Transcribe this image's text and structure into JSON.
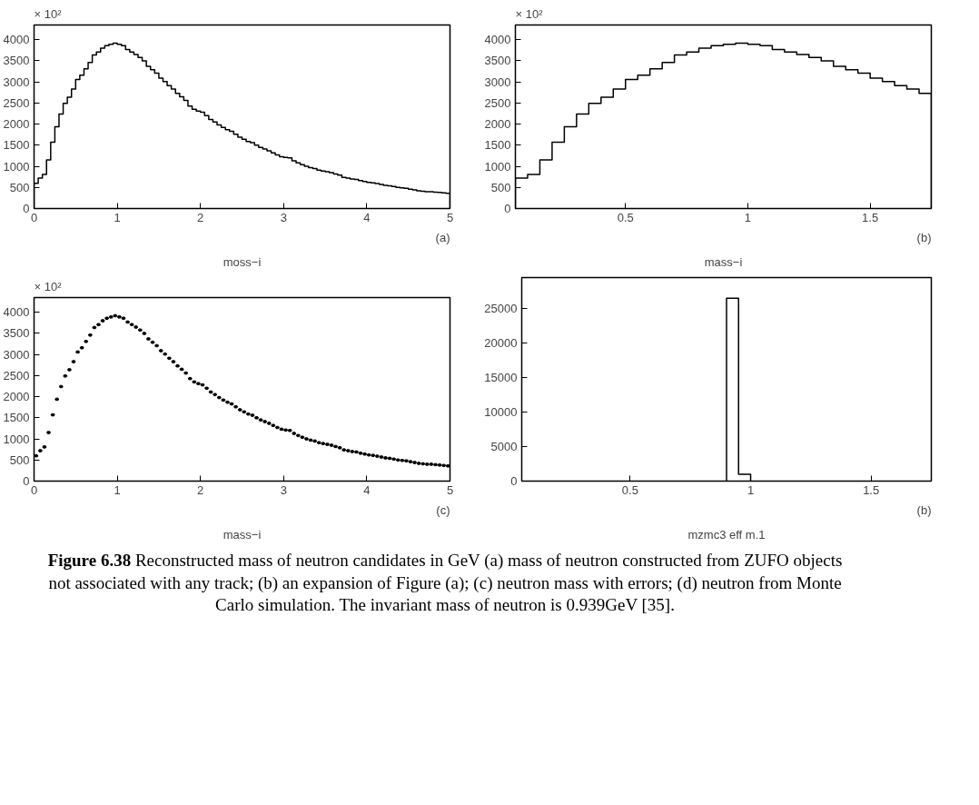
{
  "chart_data": [
    {
      "type": "histogram",
      "xlabel": "moss−i",
      "annotations": [
        "× 10²",
        "(a)"
      ],
      "xlim": [
        0,
        5
      ],
      "ylim": [
        0,
        4350
      ],
      "xticks": [
        0,
        1,
        2,
        3,
        4,
        5
      ],
      "yticks": [
        0,
        500,
        1000,
        1500,
        2000,
        2500,
        3000,
        3500,
        4000
      ],
      "color": "#000000",
      "bins": [
        0,
        0.05,
        0.1,
        0.15,
        0.2,
        0.25,
        0.3,
        0.35,
        0.4,
        0.45,
        0.5,
        0.55,
        0.6,
        0.65,
        0.7,
        0.75,
        0.8,
        0.85,
        0.9,
        0.95,
        1,
        1.05,
        1.1,
        1.15,
        1.2,
        1.25,
        1.3,
        1.35,
        1.4,
        1.45,
        1.5,
        1.55,
        1.6,
        1.65,
        1.7,
        1.75,
        1.8,
        1.85,
        1.9,
        1.95,
        2,
        2.05,
        2.1,
        2.15,
        2.2,
        2.25,
        2.3,
        2.35,
        2.4,
        2.45,
        2.5,
        2.55,
        2.6,
        2.65,
        2.7,
        2.75,
        2.8,
        2.85,
        2.9,
        2.95,
        3,
        3.05,
        3.1,
        3.15,
        3.2,
        3.25,
        3.3,
        3.35,
        3.4,
        3.45,
        3.5,
        3.55,
        3.6,
        3.65,
        3.7,
        3.75,
        3.8,
        3.85,
        3.9,
        3.95,
        4,
        4.05,
        4.1,
        4.15,
        4.2,
        4.25,
        4.3,
        4.35,
        4.4,
        4.45,
        4.5,
        4.55,
        4.6,
        4.65,
        4.7,
        4.75,
        4.8,
        4.85,
        4.9,
        4.95,
        5
      ],
      "values": [
        600,
        720,
        810,
        1150,
        1570,
        1940,
        2240,
        2490,
        2640,
        2830,
        3060,
        3160,
        3310,
        3460,
        3640,
        3710,
        3800,
        3860,
        3890,
        3920,
        3890,
        3860,
        3770,
        3710,
        3650,
        3580,
        3500,
        3370,
        3290,
        3210,
        3090,
        3010,
        2910,
        2830,
        2730,
        2650,
        2560,
        2430,
        2350,
        2310,
        2280,
        2200,
        2110,
        2050,
        1980,
        1920,
        1870,
        1830,
        1760,
        1690,
        1640,
        1590,
        1560,
        1500,
        1450,
        1410,
        1370,
        1320,
        1270,
        1230,
        1210,
        1200,
        1130,
        1080,
        1040,
        1000,
        970,
        950,
        910,
        890,
        870,
        850,
        820,
        790,
        740,
        720,
        700,
        690,
        660,
        640,
        620,
        610,
        590,
        570,
        550,
        540,
        520,
        500,
        490,
        480,
        460,
        440,
        420,
        410,
        400,
        400,
        390,
        380,
        370,
        360
      ]
    },
    {
      "type": "histogram",
      "xlabel": "mass−i",
      "annotations": [
        "× 10²",
        "(b)"
      ],
      "xlim": [
        0.05,
        1.75
      ],
      "ylim": [
        0,
        4350
      ],
      "xticks": [
        0.5,
        1,
        1.5
      ],
      "yticks": [
        0,
        500,
        1000,
        1500,
        2000,
        2500,
        3000,
        3500,
        4000
      ],
      "color": "#000000",
      "bins": [
        0.05,
        0.1,
        0.15,
        0.2,
        0.25,
        0.3,
        0.35,
        0.4,
        0.45,
        0.5,
        0.55,
        0.6,
        0.65,
        0.7,
        0.75,
        0.8,
        0.85,
        0.9,
        0.95,
        1,
        1.05,
        1.1,
        1.15,
        1.2,
        1.25,
        1.3,
        1.35,
        1.4,
        1.45,
        1.5,
        1.55,
        1.6,
        1.65,
        1.7,
        1.75
      ],
      "values": [
        720,
        810,
        1150,
        1570,
        1940,
        2240,
        2490,
        2640,
        2830,
        3060,
        3160,
        3310,
        3460,
        3640,
        3710,
        3800,
        3860,
        3890,
        3920,
        3890,
        3860,
        3770,
        3710,
        3650,
        3580,
        3500,
        3370,
        3290,
        3210,
        3090,
        3010,
        2910,
        2830,
        2730
      ]
    },
    {
      "type": "scatter",
      "marker": "square",
      "xlabel": "mass−i",
      "annotations": [
        "× 10²",
        "(c)"
      ],
      "xlim": [
        0,
        5
      ],
      "ylim": [
        0,
        4350
      ],
      "xticks": [
        0,
        1,
        2,
        3,
        4,
        5
      ],
      "yticks": [
        0,
        500,
        1000,
        1500,
        2000,
        2500,
        3000,
        3500,
        4000
      ],
      "series": [
        {
          "color": "#000000",
          "x": [
            0.025,
            0.075,
            0.125,
            0.175,
            0.225,
            0.275,
            0.325,
            0.375,
            0.425,
            0.475,
            0.525,
            0.575,
            0.625,
            0.675,
            0.725,
            0.775,
            0.825,
            0.875,
            0.925,
            0.975,
            1.025,
            1.075,
            1.125,
            1.175,
            1.225,
            1.275,
            1.325,
            1.375,
            1.425,
            1.475,
            1.525,
            1.575,
            1.625,
            1.675,
            1.725,
            1.775,
            1.825,
            1.875,
            1.925,
            1.975,
            2.025,
            2.075,
            2.125,
            2.175,
            2.225,
            2.275,
            2.325,
            2.375,
            2.425,
            2.475,
            2.525,
            2.575,
            2.625,
            2.675,
            2.725,
            2.775,
            2.825,
            2.875,
            2.925,
            2.975,
            3.025,
            3.075,
            3.125,
            3.175,
            3.225,
            3.275,
            3.325,
            3.375,
            3.425,
            3.475,
            3.525,
            3.575,
            3.625,
            3.675,
            3.725,
            3.775,
            3.825,
            3.875,
            3.925,
            3.975,
            4.025,
            4.075,
            4.125,
            4.175,
            4.225,
            4.275,
            4.325,
            4.375,
            4.425,
            4.475,
            4.525,
            4.575,
            4.625,
            4.675,
            4.725,
            4.775,
            4.825,
            4.875,
            4.925,
            4.975
          ],
          "values": [
            600,
            720,
            810,
            1150,
            1570,
            1940,
            2240,
            2490,
            2640,
            2830,
            3060,
            3160,
            3310,
            3460,
            3640,
            3710,
            3800,
            3860,
            3890,
            3920,
            3890,
            3860,
            3770,
            3710,
            3650,
            3580,
            3500,
            3370,
            3290,
            3210,
            3090,
            3010,
            2910,
            2830,
            2730,
            2650,
            2560,
            2430,
            2350,
            2310,
            2280,
            2200,
            2110,
            2050,
            1980,
            1920,
            1870,
            1830,
            1760,
            1690,
            1640,
            1590,
            1560,
            1500,
            1450,
            1410,
            1370,
            1320,
            1270,
            1230,
            1210,
            1200,
            1130,
            1080,
            1040,
            1000,
            970,
            950,
            910,
            890,
            870,
            850,
            820,
            790,
            740,
            720,
            700,
            690,
            660,
            640,
            620,
            610,
            590,
            570,
            550,
            540,
            520,
            500,
            490,
            480,
            460,
            440,
            420,
            410,
            400,
            400,
            390,
            380,
            370,
            360
          ],
          "xerrors": [
            0.025,
            0.025,
            0.025,
            0.025,
            0.025,
            0.025,
            0.025,
            0.025,
            0.025,
            0.025,
            0.025,
            0.025,
            0.025,
            0.025,
            0.025,
            0.025,
            0.025,
            0.025,
            0.025,
            0.025,
            0.025,
            0.025,
            0.025,
            0.025,
            0.025,
            0.025,
            0.025,
            0.025,
            0.025,
            0.025,
            0.025,
            0.025,
            0.025,
            0.025,
            0.025,
            0.025,
            0.025,
            0.025,
            0.025,
            0.025,
            0.025,
            0.025,
            0.025,
            0.025,
            0.025,
            0.025,
            0.025,
            0.025,
            0.025,
            0.025,
            0.025,
            0.025,
            0.025,
            0.025,
            0.025,
            0.025,
            0.025,
            0.025,
            0.025,
            0.025,
            0.025,
            0.025,
            0.025,
            0.025,
            0.025,
            0.025,
            0.025,
            0.025,
            0.025,
            0.025,
            0.025,
            0.025,
            0.025,
            0.025,
            0.025,
            0.025,
            0.025,
            0.025,
            0.025,
            0.025,
            0.025,
            0.025,
            0.025,
            0.025,
            0.025,
            0.025,
            0.025,
            0.025,
            0.025,
            0.025,
            0.025,
            0.025,
            0.025,
            0.025,
            0.025,
            0.025,
            0.025,
            0.025,
            0.025,
            0.025
          ]
        }
      ]
    },
    {
      "type": "histogram",
      "xlabel": "mzmc3 eff m.1",
      "annotations": [
        "(b)"
      ],
      "xlim": [
        0.05,
        1.75
      ],
      "ylim": [
        0,
        29400
      ],
      "xticks": [
        0.5,
        1,
        1.5
      ],
      "yticks": [
        0,
        5000,
        10000,
        15000,
        20000,
        25000
      ],
      "color": "#000000",
      "bins": [
        0.9,
        0.95,
        1.0
      ],
      "values": [
        26400,
        1000
      ]
    },
    {
      "type": "other",
      "title": "Figure 6.38",
      "subtitle": "Reconstructed mass of neutron candidates in GeV (a) mass of neutron constructed from ZUFO objects not associated with any track; (b) an expansion of Figure (a); (c) neutron mass with errors; (d) neutron from Monte Carlo simulation. The invariant mass of neutron  is 0.939GeV [35]."
    }
  ]
}
